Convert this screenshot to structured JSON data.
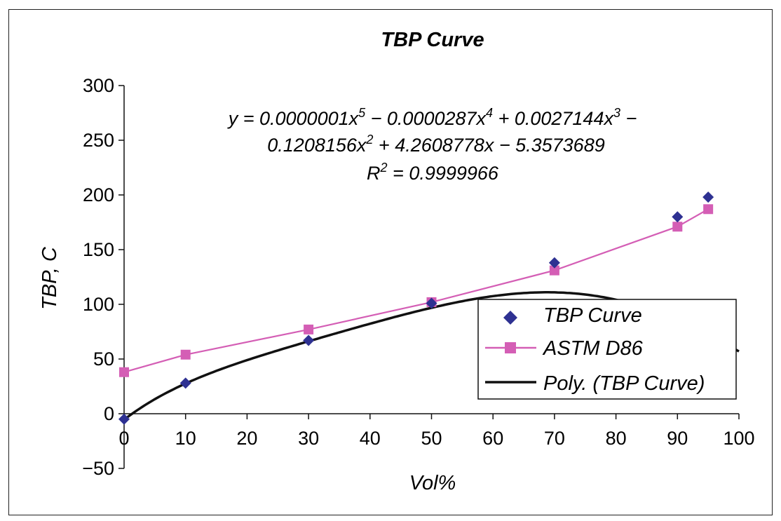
{
  "chart_data": {
    "type": "scatter",
    "title": "TBP Curve",
    "xlabel": "Vol%",
    "ylabel": "TBP, C",
    "xlim": [
      0,
      100
    ],
    "ylim": [
      -50,
      300
    ],
    "xticks": [
      "0",
      "10",
      "20",
      "30",
      "40",
      "50",
      "60",
      "70",
      "80",
      "90",
      "100"
    ],
    "yticks": [
      "300",
      "250",
      "200",
      "150",
      "100",
      "50",
      "0",
      "−50"
    ],
    "series": [
      {
        "name": "TBP Curve",
        "kind": "markers-diamond",
        "color": "#2e3192",
        "x": [
          0,
          10,
          30,
          50,
          70,
          90,
          95
        ],
        "y": [
          -5,
          28,
          67,
          101,
          138,
          180,
          198
        ]
      },
      {
        "name": "ASTM D86",
        "kind": "line-square-markers",
        "color": "#d45eb5",
        "x": [
          0,
          10,
          30,
          50,
          70,
          90,
          95
        ],
        "y": [
          38,
          54,
          77,
          102,
          131,
          171,
          187
        ]
      },
      {
        "name": "Poly. (TBP Curve)",
        "kind": "polynomial-trendline",
        "color": "#111111",
        "coefficients": [
          1e-07,
          -2.87e-05,
          0.0027144,
          -0.1208156,
          4.2608778,
          -5.3573689
        ],
        "x_range": [
          0,
          100
        ]
      }
    ],
    "annotation": {
      "line1": "y = 0.0000001x",
      "exp1": "5",
      "line1b": " − 0.0000287x",
      "exp2": "4",
      "line1c": " + 0.0027144x",
      "exp3": "3",
      "line1d": " −",
      "line2": "0.1208156x",
      "exp4": "2",
      "line2b": " + 4.2608778x − 5.3573689",
      "line3": "R",
      "exp5": "2",
      "line3b": " = 0.9999966"
    },
    "legend": {
      "position": "lower-right",
      "entries": [
        "TBP Curve",
        "ASTM D86",
        "Poly. (TBP Curve)"
      ]
    },
    "grid": false
  }
}
